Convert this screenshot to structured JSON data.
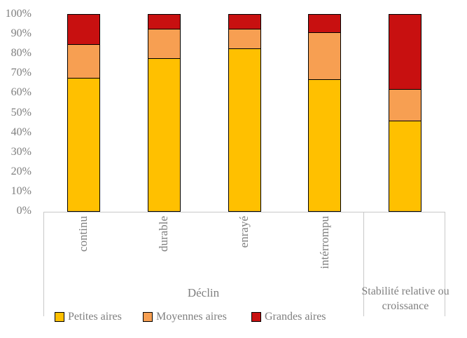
{
  "chart_data": {
    "type": "bar",
    "stacked": true,
    "percent_stacked": true,
    "title": "",
    "xlabel": "",
    "ylabel": "",
    "ylim": [
      0,
      100
    ],
    "grid": false,
    "y_ticks": [
      "0%",
      "10%",
      "20%",
      "30%",
      "40%",
      "50%",
      "60%",
      "70%",
      "80%",
      "90%",
      "100%"
    ],
    "x_groups": [
      {
        "label": "Déclin",
        "categories": [
          "continu",
          "durable",
          "enrayé",
          "intérrompu"
        ]
      },
      {
        "label": "Stabilité relative ou croissance",
        "categories": [
          ""
        ]
      }
    ],
    "categories_flat": [
      "continu",
      "durable",
      "enrayé",
      "intérrompu",
      "Stabilité relative ou croissance"
    ],
    "series": [
      {
        "name": "Petites aires",
        "color": "#FFC000",
        "values": [
          68,
          78,
          83,
          67,
          46
        ]
      },
      {
        "name": "Moyennes aires",
        "color": "#F79F52",
        "values": [
          17,
          15,
          10,
          24,
          16
        ]
      },
      {
        "name": "Grandes aires",
        "color": "#C81010",
        "values": [
          15,
          7,
          7,
          9,
          38
        ]
      }
    ],
    "legend": {
      "position": "bottom",
      "entries": [
        "Petites aires",
        "Moyennes aires",
        "Grandes aires"
      ]
    },
    "colors": {
      "bar_border": "#000000",
      "axis_line": "#c9c9c9",
      "text": "#7f7f7f"
    }
  }
}
